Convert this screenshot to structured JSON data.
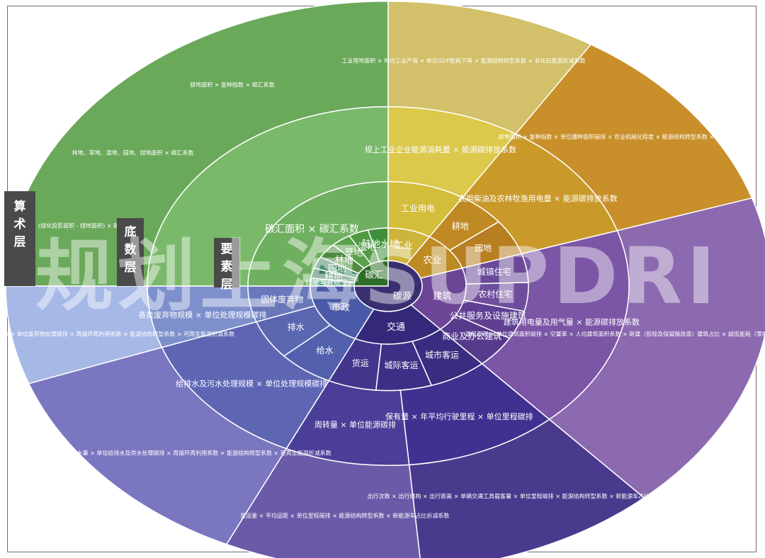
{
  "center": {
    "carbon_sink": "碳汇",
    "carbon_source": "碳源"
  },
  "layer_tags": [
    {
      "id": "suan",
      "chars": [
        "算",
        "术",
        "层"
      ]
    },
    {
      "id": "di",
      "chars": [
        "底",
        "数",
        "层"
      ]
    },
    {
      "id": "yao",
      "chars": [
        "要",
        "素",
        "层"
      ]
    }
  ],
  "watermark": "规划上海SUPDRI",
  "colors": {
    "sink_green": "#6aa95a",
    "industry_yellow": "#d8c24a",
    "agri_orange": "#c98f2a",
    "building_purple": "#7d56a0",
    "transport_indigo": "#3e2f86",
    "municipal_blue": "#5f6fb5",
    "waste_lightblue": "#8aa0d8"
  },
  "element_ring": [
    {
      "label": "陆地水域",
      "color": "#3f8f3a"
    },
    {
      "label": "湿地",
      "color": "#4f9a43"
    },
    {
      "label": "草地",
      "color": "#5aa14b"
    },
    {
      "label": "林地",
      "color": "#4e8b3f"
    },
    {
      "label": "园地",
      "color": "#4a8f6a"
    },
    {
      "label": "耕地",
      "color": "#3f7f5d"
    },
    {
      "label": "绿地与开敞空间",
      "color": "#5aa080"
    },
    {
      "label": "工业",
      "color": "#cdb53c"
    },
    {
      "label": "农业",
      "color": "#bd8a24"
    },
    {
      "label": "建筑",
      "color": "#6d4597"
    },
    {
      "label": "交通",
      "color": "#34287a"
    },
    {
      "label": "市政",
      "color": "#4a5aa8"
    }
  ],
  "middle_ring": [
    {
      "label": "碳汇面积 × 碳汇系数"
    },
    {
      "label": "工业用电"
    },
    {
      "label": "耕地"
    },
    {
      "label": "园地"
    },
    {
      "label": "城镇住宅"
    },
    {
      "label": "农村住宅"
    },
    {
      "label": "公共服务及设施建筑"
    },
    {
      "label": "商业及办公建筑"
    },
    {
      "label": "城市客运"
    },
    {
      "label": "城际客运"
    },
    {
      "label": "货运"
    },
    {
      "label": "给水"
    },
    {
      "label": "排水"
    },
    {
      "label": "固体废弃物"
    }
  ],
  "outer_ring": [
    {
      "label": "建筑用电量及用气量 × 能源碳排放系数"
    },
    {
      "label": "规上工业企业能源消耗量 × 能源碳排放系数"
    },
    {
      "label": "农用柴油及农林牧渔用电量 × 能源碳排放系数"
    },
    {
      "label": "保有量 × 年平均行驶里程 × 单位里程碳排"
    },
    {
      "label": "周转量 × 单位能源碳排"
    },
    {
      "label": "给排水及污水处理规模 × 单位处理规模碳排"
    },
    {
      "label": "各类废弃物规模 × 单位处理规模碳排"
    }
  ],
  "algorithm_ring": [
    {
      "label": "耕地面积 × 复种指数 × 碳汇系数"
    },
    {
      "label": "林地、草地、湿地、园地、绿地面积 × 碳汇系数"
    },
    {
      "label": "(绿化投影面积 - 绿地面积) × 碳汇系数"
    },
    {
      "label": "工业用地面积 × 地均工业产值 × 单位GDP能耗下降 × 能源结构转型系数 × 非化石能源折减系数"
    },
    {
      "label": "耕地面积 × 复种指数 × 单位播种面积碳排 × 农业机械化程度 × 能源结构转型系数 × 非化石能源折减"
    },
    {
      "label": "建筑面积 × 单位建筑面积碳排 × 空置率 × 人均建筑面积系数 × 新建（拆除及保留微改造）建筑占比 × 超低能耗（零能耗及零碳）建筑占比 × 能源结构转型系数 × 可再生能源系数"
    },
    {
      "label": "出行次数 × 出行结构 × 出行距离 × 单辆交通工具载客量 × 单位里程碳排 × 能源结构转型系数 × 新能源车占比折减系数"
    },
    {
      "label": "货运量 × 平均运距 × 单位里程碳排 × 能源结构转型系数 × 新能源车占比折减系数"
    },
    {
      "label": "人口规模 × 人均给水及排水量 × 单位给排水及供水处理碳排 × 再循环再利用系数 × 能源结构转型系数 × 可再生能源折减系数"
    },
    {
      "label": "人口规模 × 人均废弃物处理量 × 单位废弃物处理碳排 × 再循环再利用系数 × 能源结构转型系数 × 可再生能源折减系数"
    }
  ]
}
